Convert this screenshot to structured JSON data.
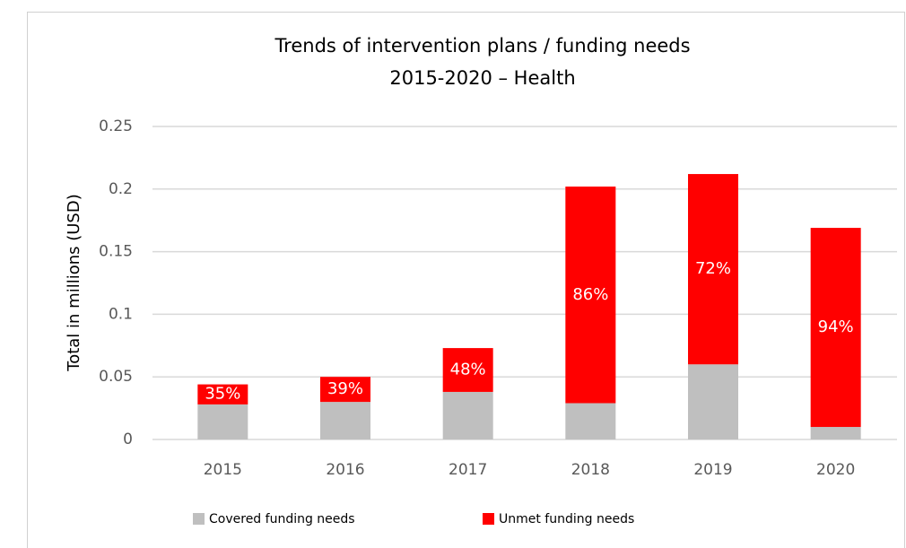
{
  "chart_data": {
    "type": "stacked-bar",
    "title": "Trends of intervention plans / funding needs",
    "subtitle": "2015-2020 – Health",
    "y_label": "Total in millions (USD)",
    "categories": [
      "2015",
      "2016",
      "2017",
      "2018",
      "2019",
      "2020"
    ],
    "series": [
      {
        "name": "Covered funding needs",
        "color": "#bfbfbf",
        "values": [
          0.028,
          0.03,
          0.038,
          0.029,
          0.06,
          0.01
        ]
      },
      {
        "name": "Unmet funding needs",
        "color": "#ff0000",
        "values": [
          0.016,
          0.02,
          0.035,
          0.173,
          0.152,
          0.159
        ],
        "share_labels": [
          "35%",
          "39%",
          "48%",
          "86%",
          "72%",
          "94%"
        ]
      }
    ],
    "ylim": [
      0,
      0.25
    ],
    "yticks": [
      0,
      0.05,
      0.1,
      0.15,
      0.2,
      0.25
    ],
    "grid": true,
    "legend": "bottom"
  }
}
